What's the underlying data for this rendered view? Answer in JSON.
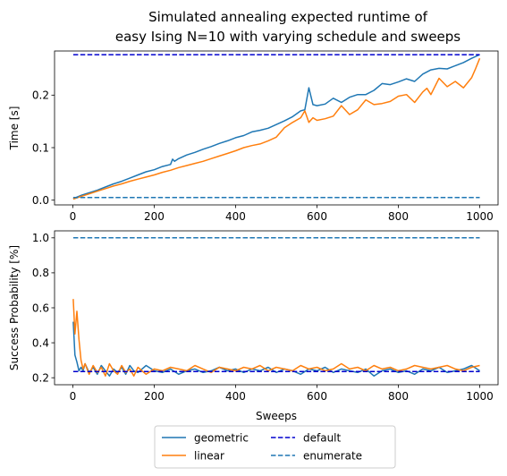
{
  "title_lines": [
    "Simulated annealing expected runtime of",
    "easy Ising N=10 with varying schedule and sweeps"
  ],
  "colors": {
    "geometric": "#1f77b4",
    "linear": "#ff7f0e",
    "default": "#0000cd",
    "enumerate": "#1f77b4"
  },
  "legend": {
    "placement": "below-plots",
    "items": [
      {
        "label": "geometric",
        "style": "solid",
        "color": "#1f77b4"
      },
      {
        "label": "linear",
        "style": "solid",
        "color": "#ff7f0e"
      },
      {
        "label": "default",
        "style": "dashed",
        "color": "#0000cd"
      },
      {
        "label": "enumerate",
        "style": "dashed",
        "color": "#1f77b4"
      }
    ]
  },
  "chart_data": [
    {
      "type": "line",
      "ylabel": "Time [s]",
      "xlabel": "",
      "xlim": [
        -45,
        1045
      ],
      "ylim": [
        -0.009,
        0.284
      ],
      "xticks": [
        0,
        200,
        400,
        600,
        800,
        1000
      ],
      "yticks": [
        0.0,
        0.1,
        0.2
      ],
      "ytick_labels": [
        "0.0",
        "0.1",
        "0.2"
      ],
      "series": [
        {
          "name": "geometric",
          "style": "solid",
          "color": "#1f77b4",
          "x": [
            1,
            20,
            40,
            60,
            80,
            100,
            120,
            140,
            160,
            180,
            200,
            220,
            240,
            245,
            250,
            260,
            280,
            300,
            320,
            340,
            360,
            380,
            400,
            420,
            440,
            460,
            480,
            500,
            520,
            540,
            560,
            570,
            580,
            590,
            600,
            620,
            640,
            660,
            680,
            700,
            720,
            740,
            760,
            780,
            800,
            820,
            840,
            860,
            880,
            900,
            920,
            940,
            960,
            980,
            1000
          ],
          "y": [
            0.003,
            0.009,
            0.014,
            0.019,
            0.025,
            0.031,
            0.036,
            0.042,
            0.048,
            0.054,
            0.058,
            0.064,
            0.068,
            0.078,
            0.074,
            0.079,
            0.086,
            0.091,
            0.097,
            0.102,
            0.108,
            0.113,
            0.119,
            0.123,
            0.13,
            0.133,
            0.137,
            0.144,
            0.151,
            0.159,
            0.17,
            0.172,
            0.214,
            0.182,
            0.18,
            0.183,
            0.194,
            0.186,
            0.196,
            0.201,
            0.201,
            0.209,
            0.222,
            0.22,
            0.225,
            0.231,
            0.226,
            0.24,
            0.248,
            0.251,
            0.25,
            0.256,
            0.262,
            0.27,
            0.277
          ]
        },
        {
          "name": "linear",
          "style": "solid",
          "color": "#ff7f0e",
          "x": [
            1,
            20,
            40,
            60,
            80,
            100,
            120,
            140,
            160,
            180,
            200,
            220,
            240,
            260,
            280,
            300,
            320,
            340,
            360,
            380,
            400,
            420,
            440,
            460,
            480,
            500,
            520,
            540,
            560,
            570,
            580,
            590,
            600,
            620,
            640,
            660,
            680,
            700,
            720,
            740,
            760,
            780,
            800,
            820,
            840,
            860,
            870,
            880,
            900,
            920,
            940,
            960,
            980,
            990,
            1000
          ],
          "y": [
            0.002,
            0.007,
            0.012,
            0.017,
            0.022,
            0.027,
            0.031,
            0.036,
            0.04,
            0.044,
            0.048,
            0.053,
            0.057,
            0.062,
            0.066,
            0.07,
            0.074,
            0.079,
            0.084,
            0.089,
            0.094,
            0.1,
            0.104,
            0.107,
            0.113,
            0.12,
            0.138,
            0.148,
            0.157,
            0.17,
            0.148,
            0.157,
            0.152,
            0.155,
            0.16,
            0.18,
            0.163,
            0.172,
            0.191,
            0.182,
            0.184,
            0.188,
            0.198,
            0.201,
            0.186,
            0.206,
            0.213,
            0.201,
            0.232,
            0.216,
            0.226,
            0.214,
            0.233,
            0.251,
            0.27
          ]
        },
        {
          "name": "default",
          "style": "dashed",
          "color": "#0000cd",
          "x": [
            1,
            1000
          ],
          "y": [
            0.277,
            0.277
          ]
        },
        {
          "name": "enumerate",
          "style": "dashed",
          "color": "#1f77b4",
          "x": [
            1,
            1000
          ],
          "y": [
            0.005,
            0.005
          ]
        }
      ]
    },
    {
      "type": "line",
      "ylabel": "Success Probability [%]",
      "xlabel": "Sweeps",
      "xlim": [
        -45,
        1045
      ],
      "ylim": [
        0.16,
        1.04
      ],
      "xticks": [
        0,
        200,
        400,
        600,
        800,
        1000
      ],
      "yticks": [
        0.2,
        0.4,
        0.6,
        0.8,
        1.0
      ],
      "ytick_labels": [
        "0.2",
        "0.4",
        "0.6",
        "0.8",
        "1.0"
      ],
      "series": [
        {
          "name": "geometric",
          "style": "solid",
          "color": "#1f77b4",
          "x": [
            1,
            5,
            10,
            15,
            20,
            25,
            30,
            40,
            50,
            60,
            70,
            80,
            90,
            100,
            110,
            120,
            130,
            140,
            150,
            160,
            170,
            180,
            200,
            220,
            240,
            260,
            280,
            300,
            320,
            340,
            360,
            380,
            400,
            420,
            440,
            460,
            480,
            500,
            520,
            540,
            560,
            580,
            600,
            620,
            640,
            660,
            680,
            700,
            720,
            740,
            760,
            780,
            800,
            820,
            840,
            860,
            880,
            900,
            920,
            940,
            960,
            980,
            1000
          ],
          "y": [
            0.52,
            0.33,
            0.29,
            0.24,
            0.26,
            0.24,
            0.28,
            0.23,
            0.26,
            0.22,
            0.27,
            0.24,
            0.21,
            0.25,
            0.23,
            0.26,
            0.22,
            0.27,
            0.24,
            0.23,
            0.25,
            0.27,
            0.24,
            0.23,
            0.25,
            0.22,
            0.24,
            0.25,
            0.23,
            0.24,
            0.26,
            0.24,
            0.25,
            0.23,
            0.25,
            0.24,
            0.26,
            0.23,
            0.25,
            0.24,
            0.22,
            0.25,
            0.24,
            0.26,
            0.23,
            0.25,
            0.24,
            0.23,
            0.25,
            0.21,
            0.24,
            0.25,
            0.23,
            0.24,
            0.22,
            0.25,
            0.24,
            0.26,
            0.23,
            0.24,
            0.25,
            0.27,
            0.24
          ]
        },
        {
          "name": "linear",
          "style": "solid",
          "color": "#ff7f0e",
          "x": [
            1,
            5,
            10,
            15,
            20,
            25,
            30,
            40,
            50,
            60,
            70,
            80,
            90,
            100,
            110,
            120,
            130,
            140,
            150,
            160,
            170,
            180,
            200,
            220,
            240,
            260,
            280,
            300,
            320,
            340,
            360,
            380,
            400,
            420,
            440,
            460,
            480,
            500,
            520,
            540,
            560,
            580,
            600,
            620,
            640,
            660,
            680,
            700,
            720,
            740,
            760,
            780,
            800,
            820,
            840,
            860,
            880,
            900,
            920,
            940,
            960,
            980,
            1000
          ],
          "y": [
            0.65,
            0.45,
            0.58,
            0.42,
            0.3,
            0.25,
            0.28,
            0.22,
            0.27,
            0.23,
            0.26,
            0.21,
            0.28,
            0.24,
            0.22,
            0.27,
            0.23,
            0.25,
            0.21,
            0.26,
            0.24,
            0.22,
            0.25,
            0.24,
            0.26,
            0.25,
            0.24,
            0.27,
            0.25,
            0.23,
            0.26,
            0.25,
            0.24,
            0.26,
            0.25,
            0.27,
            0.24,
            0.26,
            0.25,
            0.24,
            0.27,
            0.25,
            0.26,
            0.24,
            0.25,
            0.28,
            0.25,
            0.26,
            0.24,
            0.27,
            0.25,
            0.26,
            0.24,
            0.25,
            0.27,
            0.26,
            0.25,
            0.26,
            0.27,
            0.25,
            0.24,
            0.26,
            0.27
          ]
        },
        {
          "name": "default",
          "style": "dashed",
          "color": "#0000cd",
          "x": [
            1,
            1000
          ],
          "y": [
            0.235,
            0.235
          ]
        },
        {
          "name": "enumerate",
          "style": "dashed",
          "color": "#1f77b4",
          "x": [
            1,
            1000
          ],
          "y": [
            1.0,
            1.0
          ]
        }
      ]
    }
  ]
}
